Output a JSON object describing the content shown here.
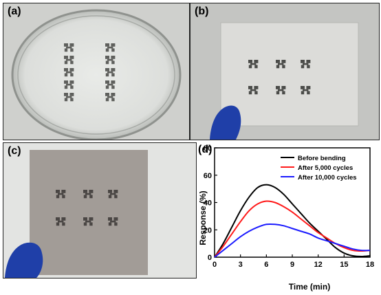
{
  "panels": {
    "a": {
      "label": "(a)"
    },
    "b": {
      "label": "(b)"
    },
    "c": {
      "label": "(c)"
    },
    "d": {
      "label": "(d)"
    }
  },
  "colors": {
    "before": "#000000",
    "after5000": "#ff1a1a",
    "after10000": "#1a1aff",
    "glove": "#1f3fa8"
  },
  "chart_data": {
    "type": "line",
    "xlabel": "Time (min)",
    "ylabel": "Response (%)",
    "xlim": [
      0,
      18
    ],
    "ylim": [
      0,
      80
    ],
    "xticks": [
      0,
      3,
      6,
      9,
      12,
      15,
      18
    ],
    "yticks": [
      0,
      20,
      40,
      60,
      80
    ],
    "legend_position": "top-right",
    "series": [
      {
        "name": "Before bending",
        "color": "#000000",
        "x": [
          0,
          1,
          2,
          3,
          4,
          5,
          6,
          7,
          8,
          9,
          10,
          11,
          12,
          13,
          14,
          15,
          16,
          17,
          18
        ],
        "y": [
          0,
          10,
          22,
          34,
          44,
          51,
          53,
          51,
          46,
          39,
          32,
          25,
          19,
          13,
          7,
          3,
          1,
          0.5,
          1
        ]
      },
      {
        "name": "After 5,000 cycles",
        "color": "#ff1a1a",
        "x": [
          0,
          1,
          2,
          3,
          4,
          5,
          6,
          7,
          8,
          9,
          10,
          11,
          12,
          13,
          14,
          15,
          16,
          17,
          18
        ],
        "y": [
          0,
          8,
          17,
          26,
          34,
          39,
          41,
          40,
          37,
          33,
          28,
          23,
          18,
          14,
          10,
          7,
          5,
          4.5,
          5
        ]
      },
      {
        "name": "After 10,000 cycles",
        "color": "#1a1aff",
        "x": [
          0,
          1,
          2,
          3,
          4,
          5,
          6,
          7,
          8,
          9,
          10,
          11,
          12,
          13,
          14,
          15,
          16,
          17,
          18
        ],
        "y": [
          0,
          5,
          10,
          15,
          19,
          22,
          24,
          24,
          23,
          21,
          19,
          17,
          14,
          12,
          10,
          8,
          6,
          5,
          5
        ]
      }
    ]
  }
}
